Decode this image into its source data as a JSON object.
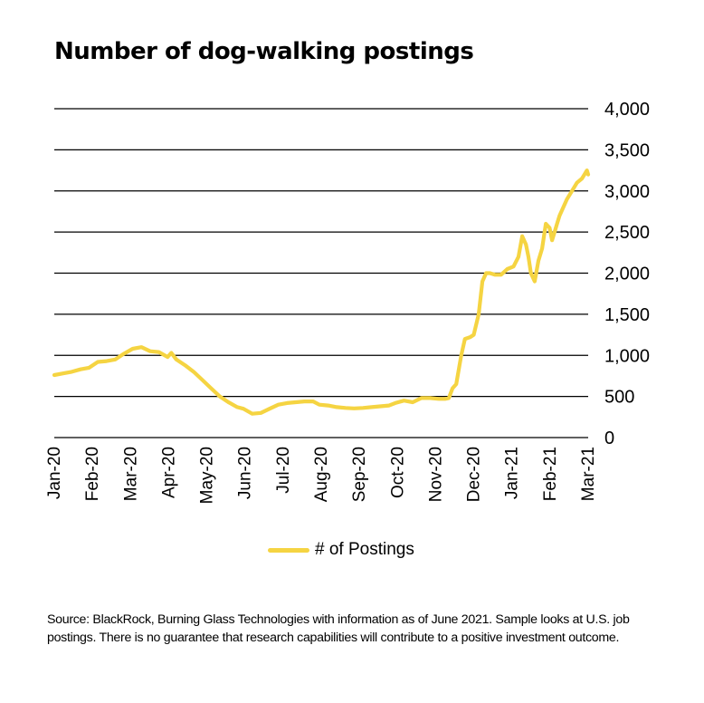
{
  "colors": {
    "line": "#f5d442",
    "gridline": "#000000",
    "text": "#000000"
  },
  "source_note": "Source: BlackRock, Burning Glass Technologies with information as of June 2021. Sample looks at U.S. job postings. There is no guarantee that research capabilities will contribute to a positive investment outcome.",
  "chart_data": {
    "type": "line",
    "title": "Number of dog-walking postings",
    "xlabel": "",
    "ylabel": "",
    "ylim": [
      0,
      4000
    ],
    "yticks": [
      0,
      500,
      1000,
      1500,
      2000,
      2500,
      3000,
      3500,
      4000
    ],
    "ytick_labels": [
      "0",
      "500",
      "1,000",
      "1,500",
      "2,000",
      "2,500",
      "3,000",
      "3,500",
      "4,000"
    ],
    "x_tick_labels": [
      "Jan-20",
      "Feb-20",
      "Mar-20",
      "Apr-20",
      "May-20",
      "Jun-20",
      "Jul-20",
      "Aug-20",
      "Sep-20",
      "Oct-20",
      "Nov-20",
      "Dec-20",
      "Jan-21",
      "Feb-21",
      "Mar-21"
    ],
    "grid": true,
    "legend_position": "bottom-center",
    "series": [
      {
        "name": "# of Postings",
        "x": [
          "2020-01-01",
          "2020-01-08",
          "2020-01-15",
          "2020-01-22",
          "2020-01-29",
          "2020-02-05",
          "2020-02-12",
          "2020-02-19",
          "2020-02-26",
          "2020-03-04",
          "2020-03-11",
          "2020-03-18",
          "2020-03-25",
          "2020-04-01",
          "2020-04-04",
          "2020-04-08",
          "2020-04-15",
          "2020-04-22",
          "2020-04-29",
          "2020-05-06",
          "2020-05-13",
          "2020-05-20",
          "2020-05-27",
          "2020-06-01",
          "2020-06-08",
          "2020-06-15",
          "2020-06-22",
          "2020-06-29",
          "2020-07-06",
          "2020-07-13",
          "2020-07-20",
          "2020-07-27",
          "2020-08-01",
          "2020-08-08",
          "2020-08-15",
          "2020-08-22",
          "2020-08-29",
          "2020-09-05",
          "2020-09-12",
          "2020-09-19",
          "2020-09-26",
          "2020-10-01",
          "2020-10-08",
          "2020-10-15",
          "2020-10-22",
          "2020-10-29",
          "2020-11-05",
          "2020-11-10",
          "2020-11-13",
          "2020-11-16",
          "2020-11-19",
          "2020-11-23",
          "2020-11-26",
          "2020-11-30",
          "2020-12-03",
          "2020-12-07",
          "2020-12-10",
          "2020-12-13",
          "2020-12-16",
          "2020-12-20",
          "2020-12-25",
          "2020-12-30",
          "2021-01-04",
          "2021-01-08",
          "2021-01-11",
          "2021-01-14",
          "2021-01-16",
          "2021-01-18",
          "2021-01-21",
          "2021-01-24",
          "2021-01-27",
          "2021-01-30",
          "2021-02-02",
          "2021-02-04",
          "2021-02-06",
          "2021-02-08",
          "2021-02-10",
          "2021-02-13",
          "2021-02-16",
          "2021-02-20",
          "2021-02-24",
          "2021-02-28",
          "2021-03-02",
          "2021-03-04",
          "2021-03-05"
        ],
        "values": [
          760,
          780,
          800,
          830,
          850,
          920,
          930,
          950,
          1020,
          1080,
          1100,
          1050,
          1040,
          980,
          1030,
          950,
          880,
          800,
          700,
          600,
          500,
          430,
          370,
          350,
          290,
          300,
          350,
          400,
          420,
          430,
          440,
          440,
          400,
          390,
          370,
          360,
          355,
          360,
          370,
          380,
          390,
          420,
          450,
          430,
          480,
          480,
          470,
          470,
          480,
          600,
          650,
          1000,
          1200,
          1220,
          1250,
          1500,
          1900,
          2000,
          2000,
          1980,
          1980,
          2050,
          2080,
          2200,
          2450,
          2350,
          2200,
          2000,
          1900,
          2150,
          2300,
          2600,
          2550,
          2400,
          2500,
          2600,
          2700,
          2800,
          2900,
          3000,
          3100,
          3150,
          3200,
          3250,
          3200
        ]
      }
    ]
  }
}
